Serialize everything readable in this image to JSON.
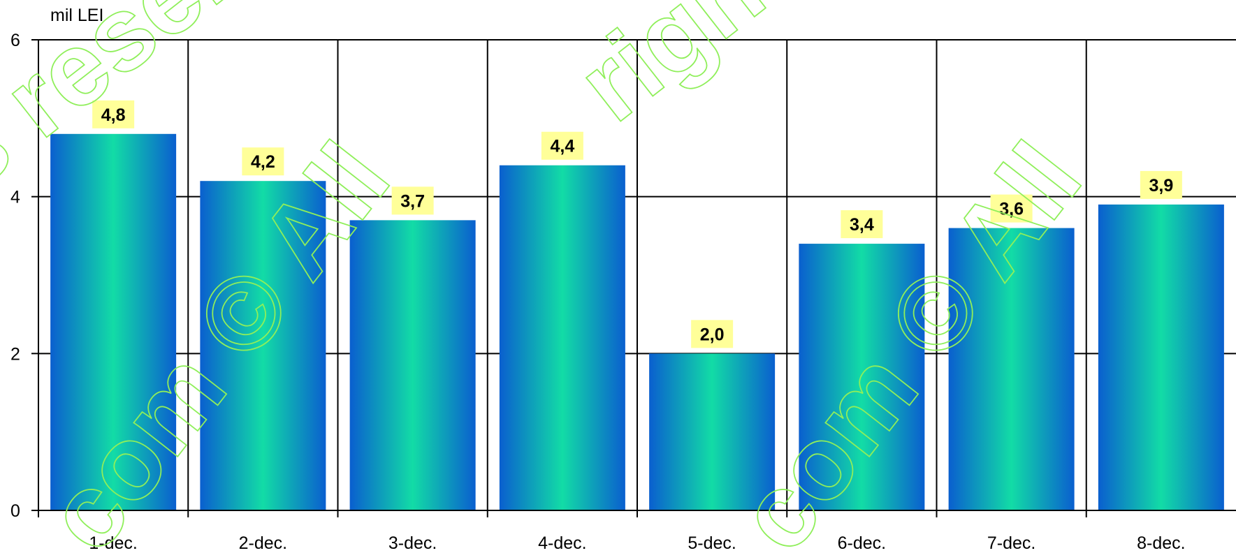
{
  "chart_data": {
    "type": "bar",
    "unit_label": "mil LEI",
    "categories": [
      "1-dec.",
      "2-dec.",
      "3-dec.",
      "4-dec.",
      "5-dec.",
      "6-dec.",
      "7-dec.",
      "8-dec."
    ],
    "values": [
      4.8,
      4.2,
      3.7,
      4.4,
      2.0,
      3.4,
      3.6,
      3.9
    ],
    "data_labels": [
      "4,8",
      "4,2",
      "3,7",
      "4,4",
      "2,0",
      "3,4",
      "3,6",
      "3,9"
    ],
    "y_ticks": [
      "0",
      "2",
      "4",
      "6"
    ],
    "ylim": [
      0,
      6
    ],
    "grid": true,
    "legend": "none",
    "colors": {
      "bar_edge": "#0a5fcf",
      "bar_center": "#12dca6",
      "label_bg": "#ffff99",
      "grid": "#000000",
      "watermark": "#8fef5a"
    }
  },
  "watermark": {
    "text": "All rights reserved",
    "fragments": [
      "s reser",
      "rights reser",
      "com © All",
      "com © All"
    ]
  }
}
